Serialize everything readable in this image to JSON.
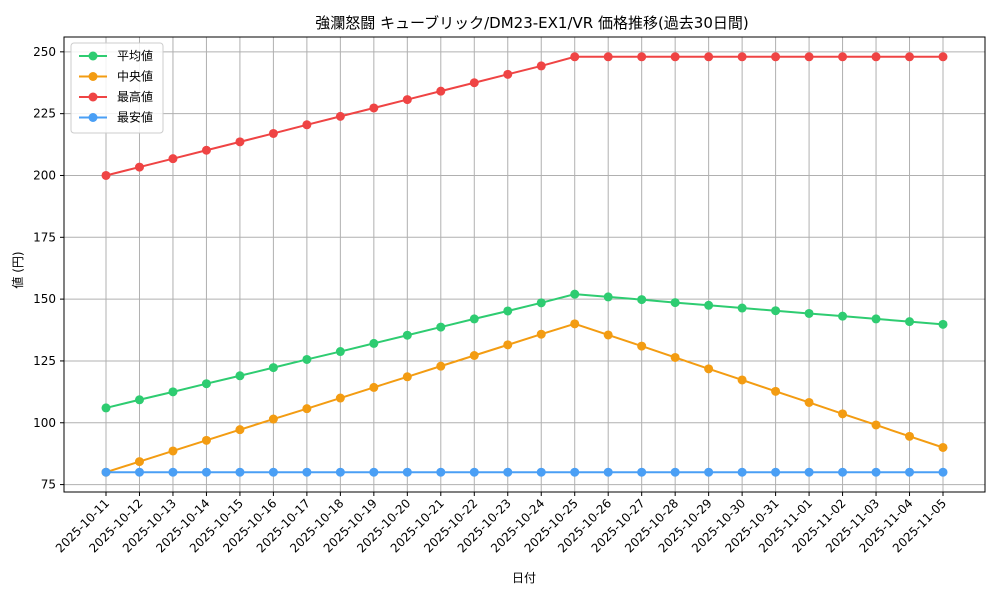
{
  "chart_data": {
    "type": "line",
    "title": "強瀾怒闘 キューブリック/DM23-EX1/VR 価格推移(過去30日間)",
    "xlabel": "日付",
    "ylabel": "値 (円)",
    "ylim": [
      72,
      256
    ],
    "yticks": [
      75,
      100,
      125,
      150,
      175,
      200,
      225,
      250
    ],
    "grid": true,
    "legend_position": "top-left",
    "categories": [
      "2025-10-11",
      "2025-10-12",
      "2025-10-13",
      "2025-10-14",
      "2025-10-15",
      "2025-10-16",
      "2025-10-17",
      "2025-10-18",
      "2025-10-19",
      "2025-10-20",
      "2025-10-21",
      "2025-10-22",
      "2025-10-23",
      "2025-10-24",
      "2025-10-25",
      "2025-10-26",
      "2025-10-27",
      "2025-10-28",
      "2025-10-29",
      "2025-10-30",
      "2025-10-31",
      "2025-11-01",
      "2025-11-02",
      "2025-11-03",
      "2025-11-04",
      "2025-11-05"
    ],
    "series": [
      {
        "name": "平均値",
        "color": "#2ecc71",
        "values": [
          106,
          109.3,
          112.5,
          115.8,
          119,
          122.3,
          125.6,
          128.8,
          132.1,
          135.4,
          138.7,
          142,
          145.2,
          148.5,
          152,
          150.9,
          149.8,
          148.6,
          147.5,
          146.4,
          145.3,
          144.2,
          143.1,
          142.0,
          140.9,
          139.8
        ]
      },
      {
        "name": "中央値",
        "color": "#f39c12",
        "values": [
          80,
          84.3,
          88.6,
          92.9,
          97.2,
          101.5,
          105.7,
          110,
          114.3,
          118.6,
          122.9,
          127.2,
          131.5,
          135.8,
          140,
          135.5,
          131,
          126.4,
          121.8,
          117.3,
          112.7,
          108.2,
          103.6,
          99.1,
          94.5,
          90
        ]
      },
      {
        "name": "最高値",
        "color": "#ef4444",
        "values": [
          200,
          203.4,
          206.8,
          210.2,
          213.6,
          217,
          220.5,
          223.9,
          227.3,
          230.7,
          234.1,
          237.5,
          240.9,
          244.3,
          248,
          248,
          248,
          248,
          248,
          248,
          248,
          248,
          248,
          248,
          248,
          248
        ]
      },
      {
        "name": "最安値",
        "color": "#4a9ff5",
        "values": [
          80,
          80,
          80,
          80,
          80,
          80,
          80,
          80,
          80,
          80,
          80,
          80,
          80,
          80,
          80,
          80,
          80,
          80,
          80,
          80,
          80,
          80,
          80,
          80,
          80,
          80
        ]
      }
    ]
  }
}
